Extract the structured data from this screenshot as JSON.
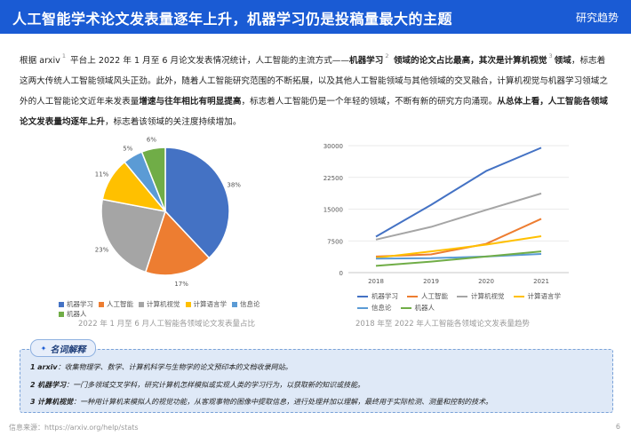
{
  "header": {
    "title": "人工智能学术论文发表量逐年上升，机器学习仍是投稿量最大的主题",
    "tag": "研究趋势"
  },
  "paragraph": {
    "p1": "根据 arxiv",
    "sup1": "1",
    "p2": " 平台上 2022 年 1 月至 6 月论文发表情况统计，人工智能的主流方式——",
    "b1": "机器学习",
    "sup2": "2",
    "b2": " 领域的论文占比最高，其次是计算机视觉",
    "sup3": "3",
    "b3": "领域",
    "p3": "，标志着这两大传统人工智能领域风头正劲。此外，随着人工智能研究范围的不断拓展，以及其他人工智能领域与其他领域的交叉融合，计算机视觉与机器学习领域之外的人工智能论文近年来发表量",
    "b4": "增速与往年相比有明显提高",
    "p4": "，标志着人工智能仍是一个年轻的领域，不断有新的研究方向涌现。",
    "b5": "从总体上看，人工智能各领域论文发表量均逐年上升",
    "p5": "，标志着该领域的关注度持续增加。"
  },
  "chart_data": [
    {
      "type": "pie",
      "title": "2022 年 1 月至 6 月人工智能各领域论文发表量占比",
      "categories": [
        "机器学习",
        "人工智能",
        "计算机视觉",
        "计算语言学",
        "信息论",
        "机器人"
      ],
      "values": [
        38,
        17,
        23,
        11,
        5,
        6
      ],
      "labels": [
        "38%",
        "17%",
        "23%",
        "11%",
        "5%",
        "6%"
      ],
      "colors": [
        "#4472c4",
        "#ed7d31",
        "#a5a5a5",
        "#ffc000",
        "#5b9bd5",
        "#70ad47"
      ],
      "legend": "bottom"
    },
    {
      "type": "line",
      "title": "2018 年至 2022 年人工智能各领域论文发表量趋势",
      "x": [
        "2018",
        "2019",
        "2020",
        "2021"
      ],
      "ylim": [
        0,
        30000
      ],
      "yticks": [
        "0",
        "7500",
        "15000",
        "22500",
        "30000"
      ],
      "grid": true,
      "legend": "bottom",
      "series": [
        {
          "name": "机器学习",
          "color": "#4472c4",
          "values": [
            8500,
            16000,
            24000,
            29500
          ]
        },
        {
          "name": "人工智能",
          "color": "#ed7d31",
          "values": [
            3800,
            4300,
            6800,
            12700
          ]
        },
        {
          "name": "计算机视觉",
          "color": "#a5a5a5",
          "values": [
            7800,
            10800,
            14800,
            18700
          ]
        },
        {
          "name": "计算语言学",
          "color": "#ffc000",
          "values": [
            3500,
            5000,
            6600,
            8600
          ]
        },
        {
          "name": "信息论",
          "color": "#5b9bd5",
          "values": [
            3300,
            3400,
            3800,
            4400
          ]
        },
        {
          "name": "机器人",
          "color": "#70ad47",
          "values": [
            1600,
            2600,
            3800,
            5000
          ]
        }
      ]
    }
  ],
  "glossary": {
    "heading": "名词解释",
    "items": [
      {
        "num": "1",
        "term": "arxiv",
        "def": "：收集物理学、数学、计算机科学与生物学的论文预印本的文档收录网站。"
      },
      {
        "num": "2",
        "term": "机器学习",
        "def": "：一门多领域交叉学科，研究计算机怎样模拟或实现人类的学习行为，以获取新的知识或技能。"
      },
      {
        "num": "3",
        "term": "计算机视觉",
        "def": "：一种用计算机来模拟人的视觉功能，从客观事物的图像中提取信息，进行处理并加以理解，最终用于实际检测、测量和控制的技术。"
      }
    ]
  },
  "footer": {
    "source": "信息来源：https://arxiv.org/help/stats",
    "page": "6"
  }
}
